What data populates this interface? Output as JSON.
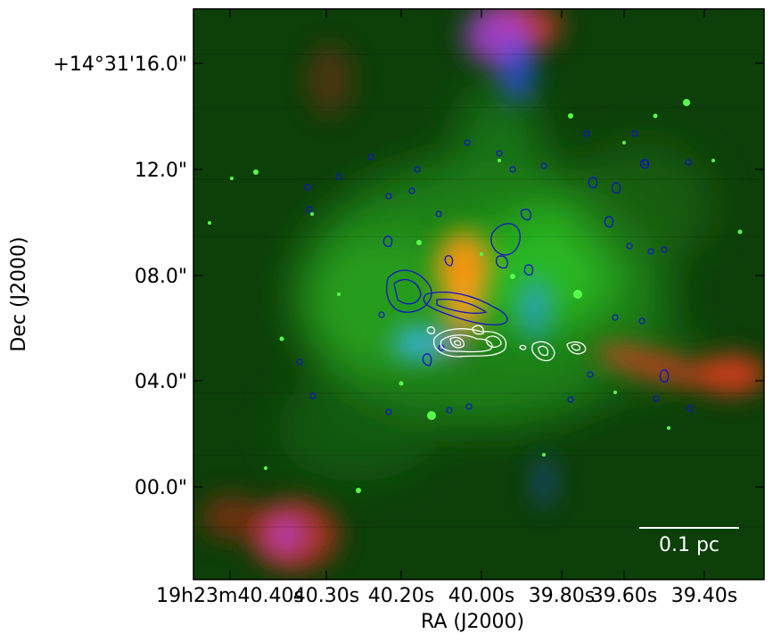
{
  "figure": {
    "xlabel": "RA (J2000)",
    "ylabel": "Dec (J2000)",
    "ytick_labels": [
      "+14°31'16.0\"",
      "12.0\"",
      "08.0\"",
      "04.0\"",
      "00.0\""
    ],
    "xtick_labels": [
      "19h23m40.40s",
      "40.30s",
      "40.20s",
      "40.00s",
      "39.80s",
      "39.60s",
      "39.40s"
    ],
    "scale_bar_label": "0.1 pc"
  },
  "colors": {
    "background_green": "#0f4a0a",
    "green_emission": "#27c21c",
    "orange_core": "#ff9410",
    "red_filament": "#e23820",
    "blue_emission": "#2a52ff",
    "magenta": "#d33be0",
    "contour_blue": "#1212c8",
    "contour_white": "#ffffff"
  }
}
